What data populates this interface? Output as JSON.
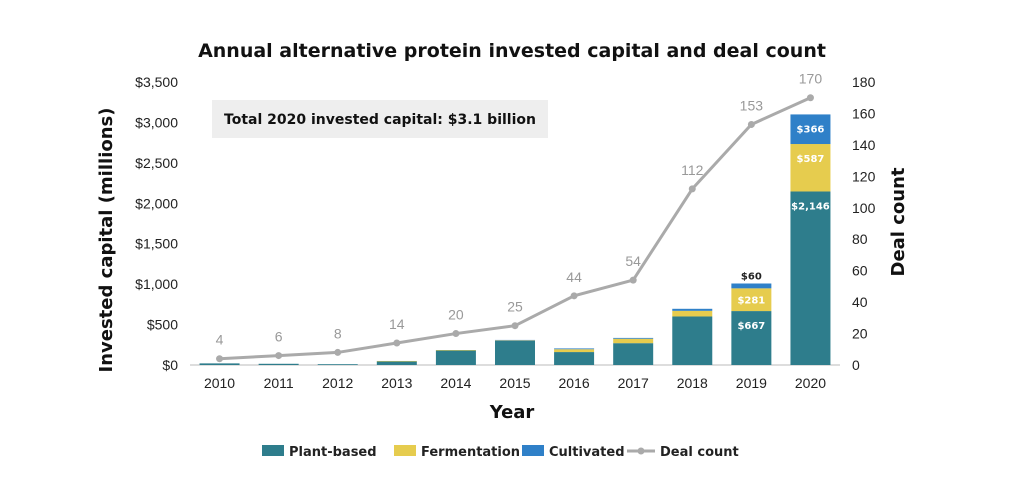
{
  "chart_data": {
    "type": "bar",
    "stacked": true,
    "title": "Annual alternative protein invested capital and deal count",
    "xlabel": "Year",
    "ylabel": "Invested capital (millions)",
    "y2label": "Deal count",
    "ylim": [
      0,
      3500
    ],
    "y2lim": [
      0,
      180
    ],
    "yticks": [
      "$0",
      "$500",
      "$1,000",
      "$1,500",
      "$2,000",
      "$2,500",
      "$3,000",
      "$3,500"
    ],
    "y2ticks": [
      "0",
      "20",
      "40",
      "60",
      "80",
      "100",
      "120",
      "140",
      "160",
      "180"
    ],
    "categories": [
      "2010",
      "2011",
      "2012",
      "2013",
      "2014",
      "2015",
      "2016",
      "2017",
      "2018",
      "2019",
      "2020"
    ],
    "series": [
      {
        "name": "Plant-based",
        "color": "#2e7d8c",
        "values": [
          20,
          15,
          10,
          45,
          180,
          300,
          160,
          270,
          600,
          667,
          2146
        ]
      },
      {
        "name": "Fermentation",
        "color": "#e6cc4e",
        "values": [
          0,
          0,
          0,
          5,
          5,
          5,
          35,
          55,
          70,
          281,
          587
        ]
      },
      {
        "name": "Cultivated",
        "color": "#2f80c8",
        "values": [
          0,
          0,
          0,
          0,
          0,
          5,
          10,
          10,
          25,
          60,
          366
        ]
      }
    ],
    "line_series": {
      "name": "Deal count",
      "color": "#aaaaaa",
      "axis": "right",
      "values": [
        4,
        6,
        8,
        14,
        20,
        25,
        44,
        54,
        112,
        153,
        170
      ]
    },
    "bar_labels": [
      {
        "category": "2019",
        "series": "Plant-based",
        "text": "$667"
      },
      {
        "category": "2019",
        "series": "Fermentation",
        "text": "$281"
      },
      {
        "category": "2019",
        "series": "Cultivated",
        "text": "$60"
      },
      {
        "category": "2020",
        "series": "Plant-based",
        "text": "$2,146"
      },
      {
        "category": "2020",
        "series": "Fermentation",
        "text": "$587"
      },
      {
        "category": "2020",
        "series": "Cultivated",
        "text": "$366"
      }
    ],
    "annotation": "Total 2020 invested capital: $3.1 billion",
    "legend_position": "bottom",
    "grid": false
  }
}
